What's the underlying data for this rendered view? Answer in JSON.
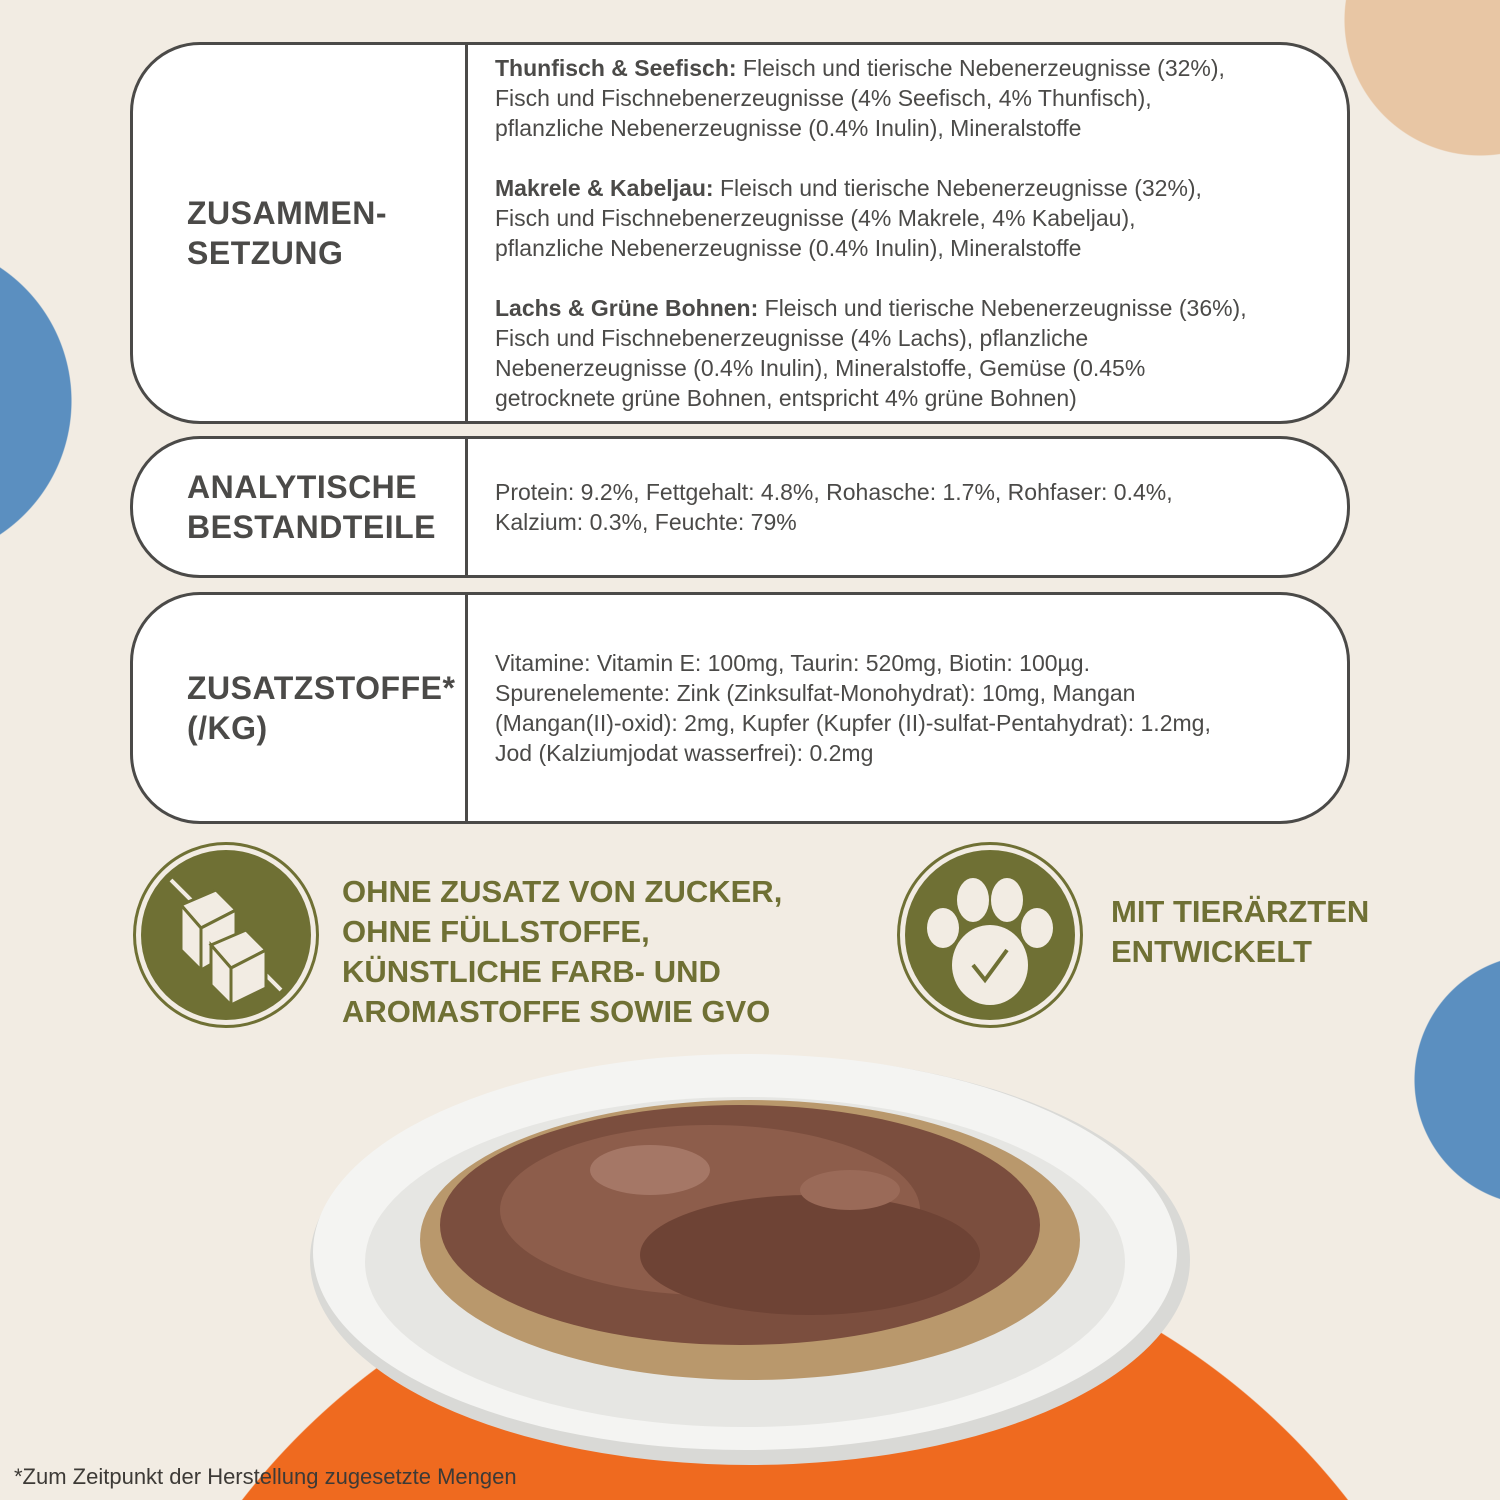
{
  "composition": {
    "heading_lines": [
      "ZUSAMMEN-",
      "SETZUNG"
    ],
    "varieties": [
      {
        "name": "Thunfisch & Seefisch:",
        "lines": [
          " Fleisch und tierische Nebenerzeugnisse (32%),",
          "Fisch und Fischnebenerzeugnisse (4% Seefisch, 4% Thunfisch),",
          "pflanzliche Nebenerzeugnisse (0.4% Inulin), Mineralstoffe"
        ]
      },
      {
        "name": "Makrele & Kabeljau:",
        "lines": [
          " Fleisch und tierische Nebenerzeugnisse (32%),",
          "Fisch und Fischnebenerzeugnisse (4% Makrele, 4% Kabeljau),",
          "pflanzliche Nebenerzeugnisse (0.4% Inulin), Mineralstoffe"
        ]
      },
      {
        "name": "Lachs & Grüne Bohnen:",
        "lines": [
          " Fleisch und tierische Nebenerzeugnisse (36%),",
          "Fisch und Fischnebenerzeugnisse (4% Lachs), pflanzliche",
          "Nebenerzeugnisse (0.4% Inulin), Mineralstoffe, Gemüse (0.45%",
          "getrocknete grüne Bohnen, entspricht 4% grüne Bohnen)"
        ]
      }
    ]
  },
  "analytical": {
    "heading_lines": [
      "ANALYTISCHE",
      "BESTANDTEILE"
    ],
    "lines": [
      "Protein: 9.2%, Fettgehalt: 4.8%, Rohasche: 1.7%, Rohfaser: 0.4%,",
      "Kalzium: 0.3%, Feuchte: 79%"
    ]
  },
  "additives": {
    "heading_lines": [
      "ZUSATZSTOFFE*",
      "(/KG)"
    ],
    "lines": [
      "Vitamine: Vitamin E: 100mg, Taurin: 520mg, Biotin: 100µg.",
      "Spurenelemente: Zink (Zinksulfat-Monohydrat): 10mg, Mangan",
      "(Mangan(II)-oxid): 2mg, Kupfer (Kupfer (II)-sulfat-Pentahydrat): 1.2mg,",
      "Jod (Kalziumjodat wasserfrei): 0.2mg"
    ]
  },
  "claims": [
    {
      "icon": "no-sugar-cubes-icon",
      "lines": [
        "OHNE ZUSATZ VON ZUCKER,",
        "OHNE FÜLLSTOFFE,",
        "KÜNSTLICHE FARB- UND",
        "AROMASTOFFE SOWIE GVO"
      ]
    },
    {
      "icon": "paw-check-icon",
      "lines": [
        "MIT TIERÄRZTEN",
        "ENTWICKELT"
      ]
    }
  ],
  "footnote": "*Zum Zeitpunkt der Herstellung zugesetzte Mengen",
  "colors": {
    "background": "#f2ece3",
    "accent_green": "#6f7034",
    "blue": "#5b8fc0",
    "peach": "#e8c6a4",
    "orange": "#ef6a1f",
    "text": "#4b4a48"
  }
}
